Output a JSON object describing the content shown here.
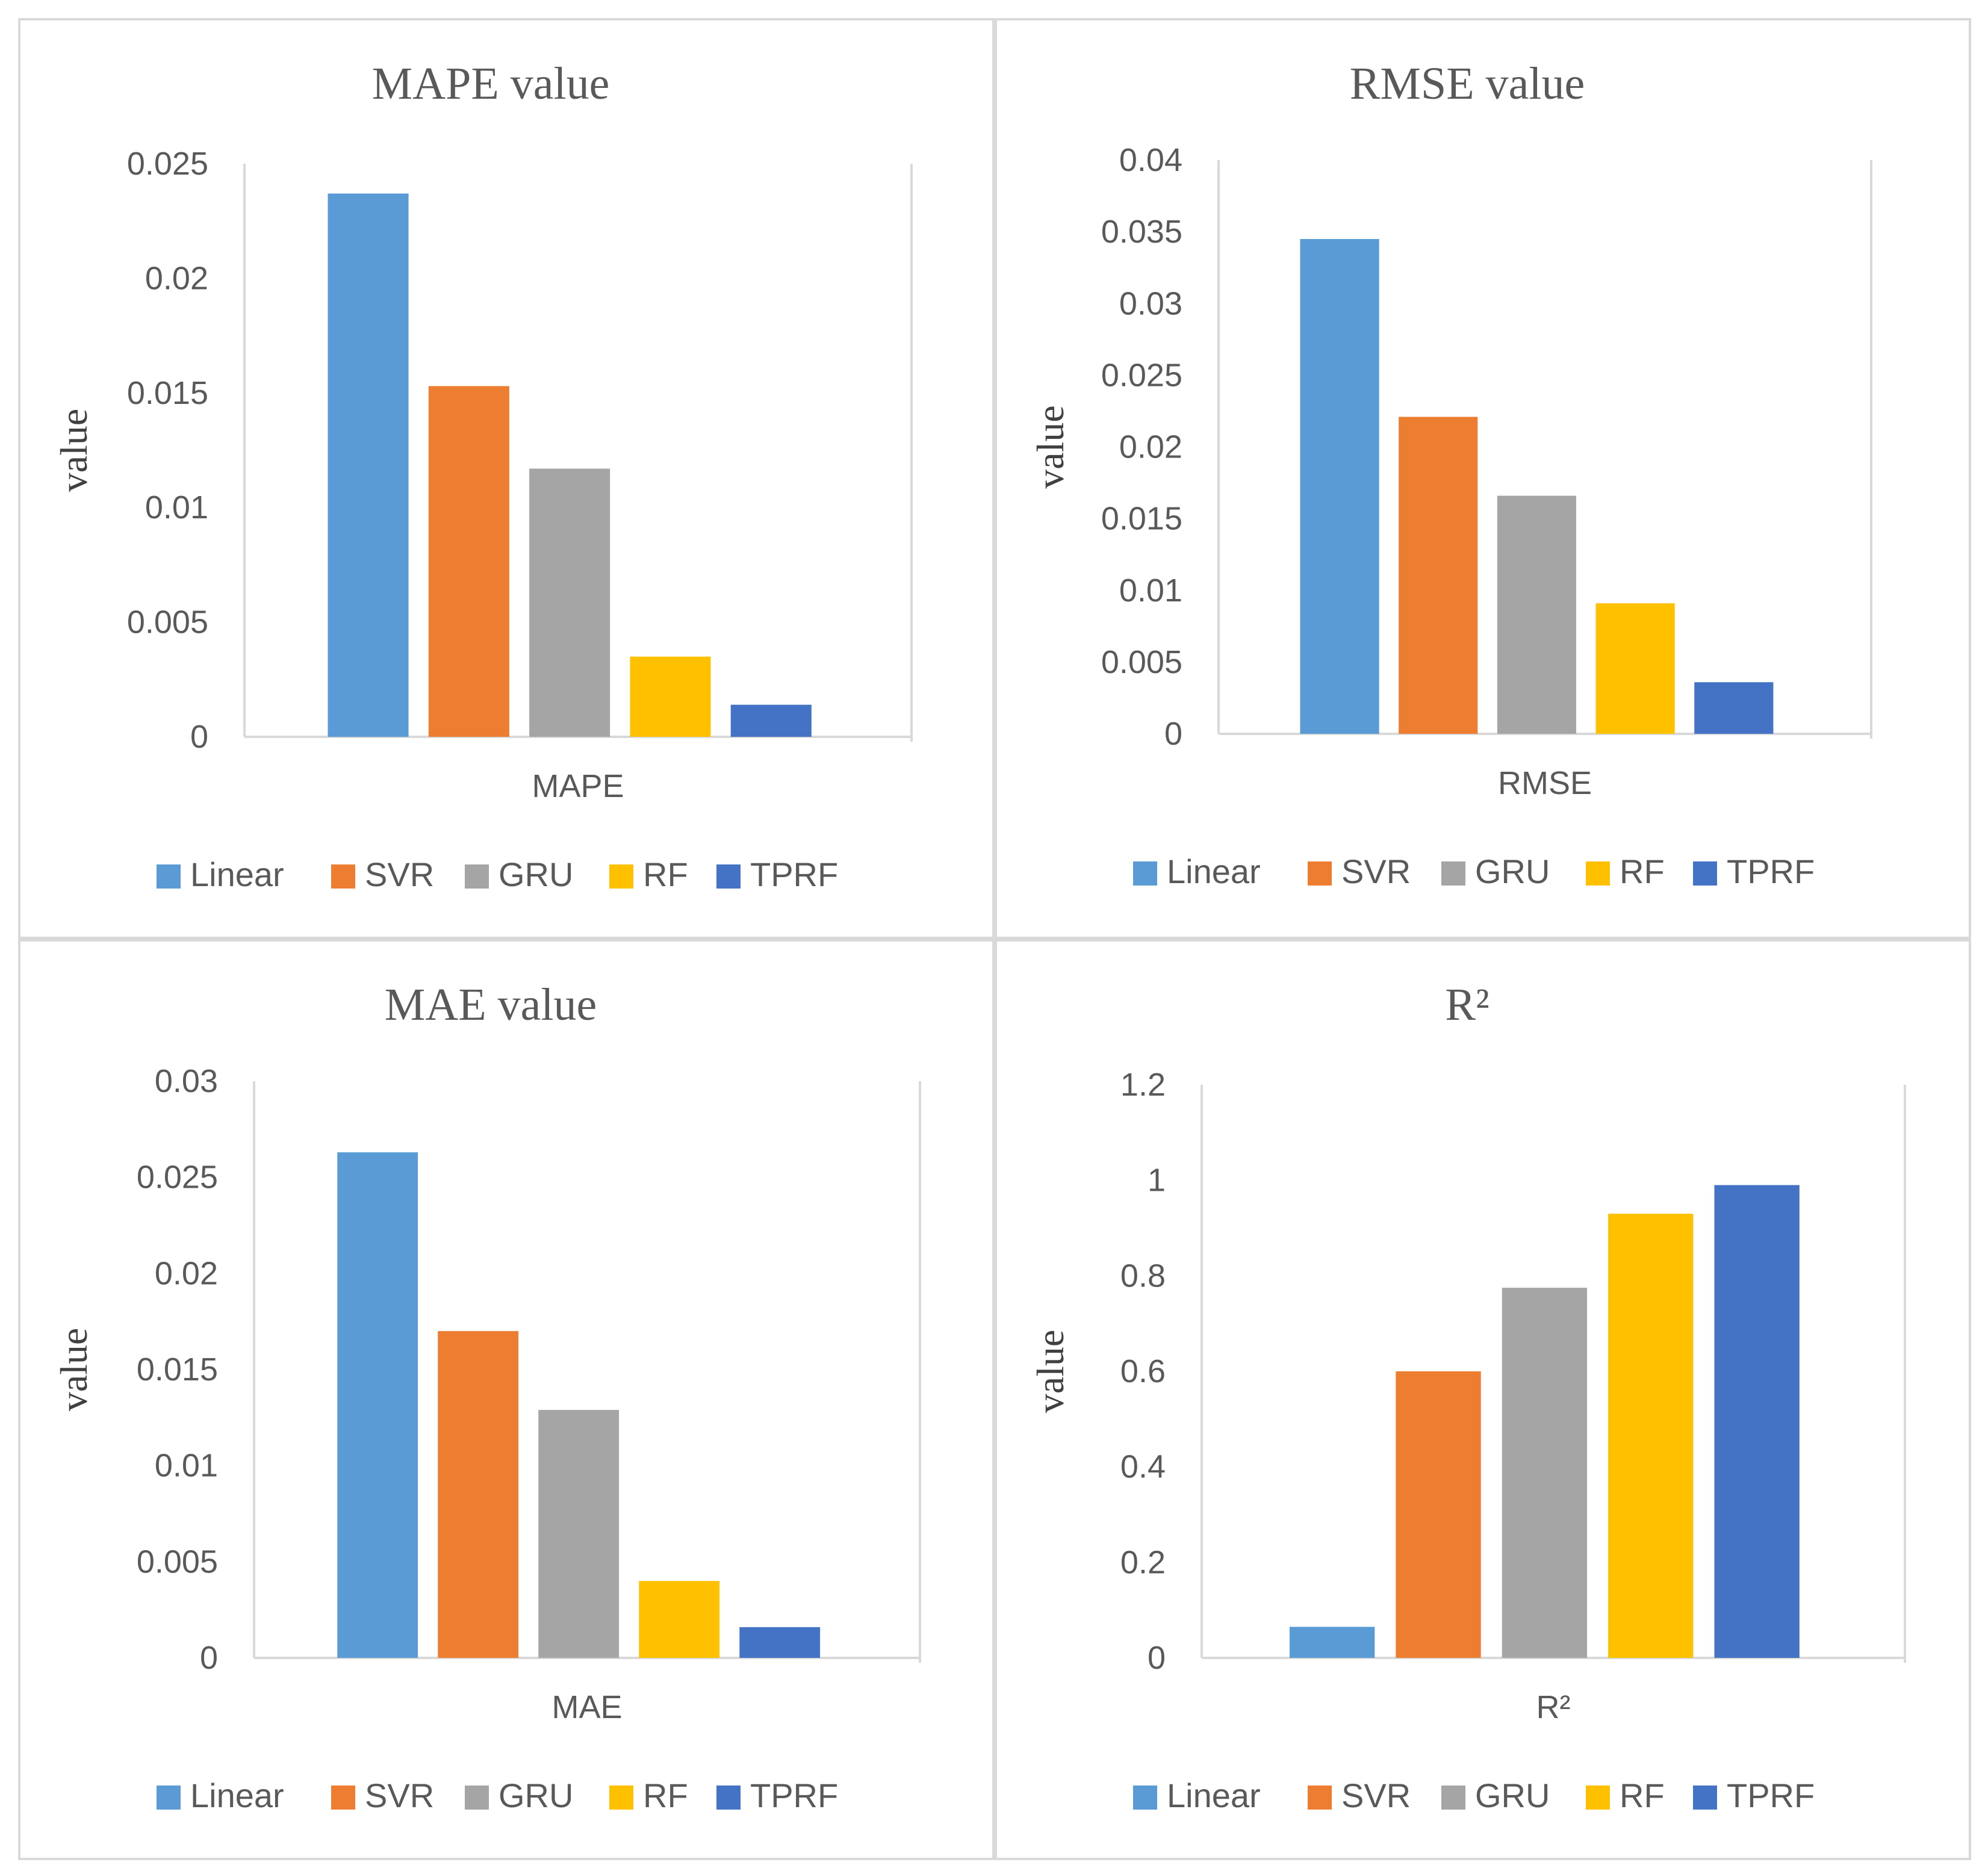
{
  "colors": {
    "Linear": "#5B9BD5",
    "SVR": "#ED7D31",
    "GRU": "#A5A5A5",
    "RF": "#FFC000",
    "TPRF": "#4472C4",
    "axis": "#d9d9d9",
    "text": "#595959"
  },
  "chart_data": [
    {
      "type": "bar",
      "title": "MAPE value",
      "xlabel": "MAPE",
      "ylabel": "value",
      "ylim": [
        0,
        0.025
      ],
      "yticks": [
        "0",
        "0.005",
        "0.01",
        "0.015",
        "0.02",
        "0.025"
      ],
      "series": [
        {
          "name": "Linear",
          "values": [
            0.0237
          ]
        },
        {
          "name": "SVR",
          "values": [
            0.0153
          ]
        },
        {
          "name": "GRU",
          "values": [
            0.0117
          ]
        },
        {
          "name": "RF",
          "values": [
            0.0035
          ]
        },
        {
          "name": "TPRF",
          "values": [
            0.0014
          ]
        }
      ]
    },
    {
      "type": "bar",
      "title": "RMSE value",
      "xlabel": "RMSE",
      "ylabel": "value",
      "ylim": [
        0,
        0.04
      ],
      "yticks": [
        "0",
        "0.005",
        "0.01",
        "0.015",
        "0.02",
        "0.025",
        "0.03",
        "0.035",
        "0.04"
      ],
      "series": [
        {
          "name": "Linear",
          "values": [
            0.0345
          ]
        },
        {
          "name": "SVR",
          "values": [
            0.0221
          ]
        },
        {
          "name": "GRU",
          "values": [
            0.0166
          ]
        },
        {
          "name": "RF",
          "values": [
            0.0091
          ]
        },
        {
          "name": "TPRF",
          "values": [
            0.0036
          ]
        }
      ]
    },
    {
      "type": "bar",
      "title": "MAE value",
      "xlabel": "MAE",
      "ylabel": "value",
      "ylim": [
        0,
        0.03
      ],
      "yticks": [
        "0",
        "0.005",
        "0.01",
        "0.015",
        "0.02",
        "0.025",
        "0.03"
      ],
      "series": [
        {
          "name": "Linear",
          "values": [
            0.0263
          ]
        },
        {
          "name": "SVR",
          "values": [
            0.017
          ]
        },
        {
          "name": "GRU",
          "values": [
            0.0129
          ]
        },
        {
          "name": "RF",
          "values": [
            0.004
          ]
        },
        {
          "name": "TPRF",
          "values": [
            0.0016
          ]
        }
      ]
    },
    {
      "type": "bar",
      "title": "R²",
      "xlabel": "R²",
      "ylabel": "value",
      "ylim": [
        0,
        1.2
      ],
      "yticks": [
        "0",
        "0.2",
        "0.4",
        "0.6",
        "0.8",
        "1",
        "1.2"
      ],
      "series": [
        {
          "name": "Linear",
          "values": [
            0.065
          ]
        },
        {
          "name": "SVR",
          "values": [
            0.6
          ]
        },
        {
          "name": "GRU",
          "values": [
            0.775
          ]
        },
        {
          "name": "RF",
          "values": [
            0.93
          ]
        },
        {
          "name": "TPRF",
          "values": [
            0.99
          ]
        }
      ]
    }
  ]
}
